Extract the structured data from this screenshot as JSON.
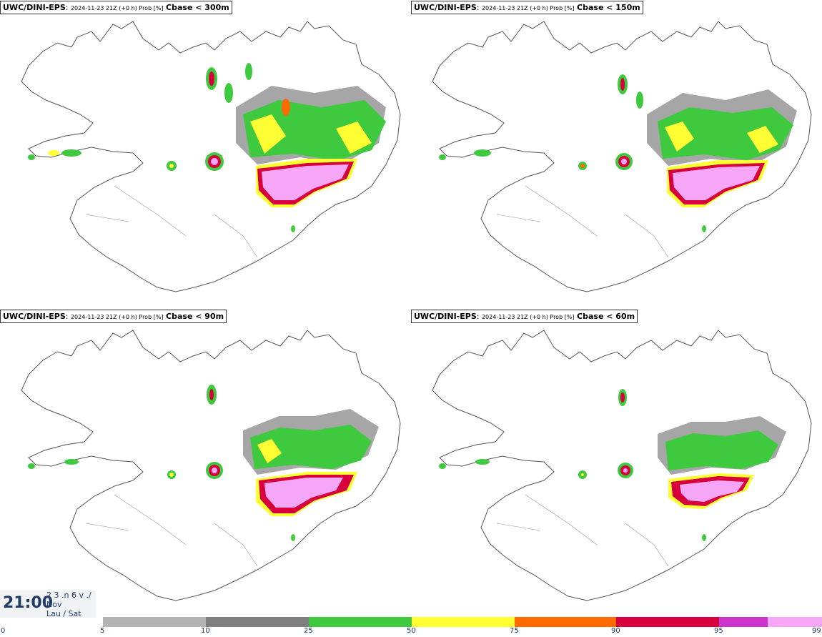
{
  "panels": [
    {
      "model": "UWC/DINI-EPS",
      "meta": "2024-11-23 21Z (+0 h) Prob [%]",
      "param": "Cbase < 300m"
    },
    {
      "model": "UWC/DINI-EPS",
      "meta": "2024-11-23 21Z (+0 h) Prob [%]",
      "param": "Cbase < 150m"
    },
    {
      "model": "UWC/DINI-EPS",
      "meta": "2024-11-23 21Z (+0 h) Prob [%]",
      "param": "Cbase < 90m"
    },
    {
      "model": "UWC/DINI-EPS",
      "meta": "2024-11-23 21Z (+0 h) Prob [%]",
      "param": "Cbase < 60m"
    }
  ],
  "time": {
    "clock": "21:00",
    "line1": "2 3 .n 6 v ./",
    "line2": "Nov",
    "line3": "Lau / Sat"
  },
  "legend": {
    "ticks": [
      "0",
      "5",
      "10",
      "25",
      "50",
      "75",
      "90",
      "95",
      "99"
    ],
    "colors": [
      "#b3b3b3",
      "#808080",
      "#3ec93e",
      "#ffff33",
      "#ff6a00",
      "#d8003c",
      "#cc33cc",
      "#f6a6f6"
    ]
  },
  "colors": {
    "pink": "#f6a6f6",
    "magenta": "#cc33cc",
    "crimson": "#d8003c",
    "orange": "#ff6a00",
    "yellow": "#ffff33",
    "green": "#3ec93e",
    "gray": "#808080"
  }
}
